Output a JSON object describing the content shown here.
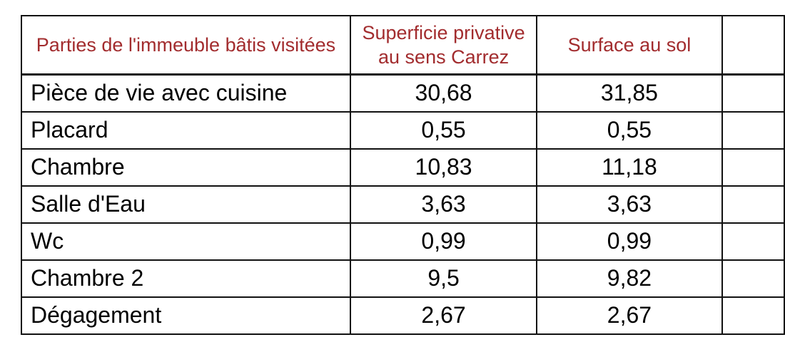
{
  "table": {
    "headers": {
      "parts": "Parties de l'immeuble bâtis visitées",
      "carrez": "Superficie privative\nau sens Carrez",
      "floor_area": "Surface au sol",
      "extra": ""
    },
    "rows": [
      {
        "part": "Pièce de vie avec cuisine",
        "carrez": "30,68",
        "floor_area": "31,85",
        "extra": ""
      },
      {
        "part": "Placard",
        "carrez": "0,55",
        "floor_area": "0,55",
        "extra": ""
      },
      {
        "part": "Chambre",
        "carrez": "10,83",
        "floor_area": "11,18",
        "extra": ""
      },
      {
        "part": "Salle d'Eau",
        "carrez": "3,63",
        "floor_area": "3,63",
        "extra": ""
      },
      {
        "part": "Wc",
        "carrez": "0,99",
        "floor_area": "0,99",
        "extra": ""
      },
      {
        "part": "Chambre 2",
        "carrez": "9,5",
        "floor_area": "9,82",
        "extra": ""
      },
      {
        "part": "Dégagement",
        "carrez": "2,67",
        "floor_area": "2,67",
        "extra": ""
      }
    ]
  },
  "colors": {
    "header_text": "#a22c2e",
    "body_text": "#000000",
    "border": "#111111",
    "background": "#ffffff"
  }
}
